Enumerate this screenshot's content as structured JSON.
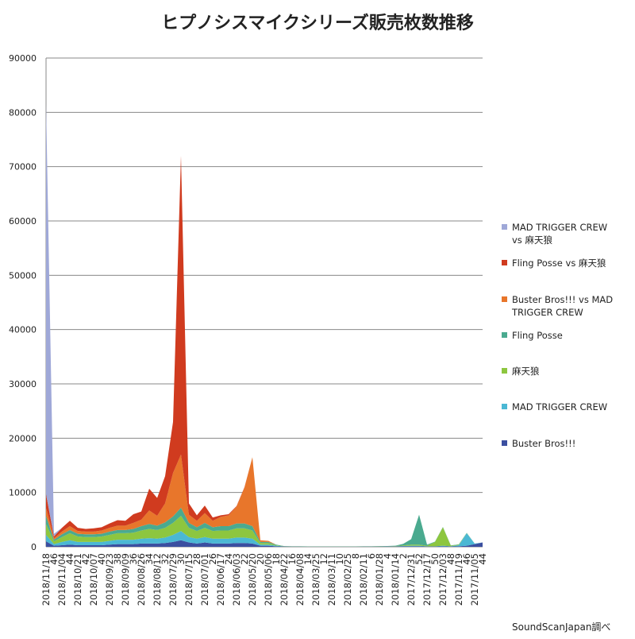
{
  "chart_data": {
    "type": "stacked_area",
    "title": "ヒプノシスマイクシリーズ販売枚数推移",
    "source": "SoundScanJapan調べ",
    "categories": [
      "2018/11/18",
      "46",
      "2018/11/04",
      "44",
      "2018/10/21",
      "42",
      "2018/10/07",
      "40",
      "2018/09/23",
      "38",
      "2018/09/09",
      "36",
      "2018/08/26",
      "34",
      "2018/08/12",
      "32",
      "2018/07/29",
      "30",
      "2018/07/15",
      "28",
      "2018/07/01",
      "26",
      "2018/06/17",
      "24",
      "2018/06/03",
      "22",
      "2018/05/20",
      "20",
      "2018/05/06",
      "18",
      "2018/04/22",
      "16",
      "2018/04/08",
      "14",
      "2018/03/25",
      "12",
      "2018/03/11",
      "10",
      "2018/02/25",
      "8",
      "2018/02/11",
      "6",
      "2018/01/28",
      "4",
      "2018/01/14",
      "2",
      "2017/12/31",
      "52",
      "2017/12/17",
      "50",
      "2017/12/03",
      "48",
      "2017/11/19",
      "46",
      "2017/11/05",
      "44"
    ],
    "series": [
      {
        "name": "MAD TRIGGER CREW vs 麻天狼",
        "color": "#9fa8d8",
        "values": [
          72000,
          500,
          0,
          0,
          0,
          0,
          0,
          0,
          0,
          0,
          0,
          0,
          0,
          0,
          0,
          0,
          0,
          0,
          0,
          0,
          0,
          0,
          0,
          0,
          0,
          0,
          0,
          0,
          0,
          0,
          0,
          0,
          0,
          0,
          0,
          0,
          0,
          0,
          0,
          0,
          0,
          0,
          0,
          0,
          0,
          0,
          0,
          0,
          0,
          0,
          0,
          0,
          0,
          0,
          0,
          0
        ]
      },
      {
        "name": "Fling Posse vs 麻天狼",
        "color": "#d03b1f",
        "values": [
          2500,
          300,
          700,
          1000,
          600,
          500,
          600,
          600,
          800,
          1000,
          900,
          1600,
          1500,
          4000,
          3300,
          5000,
          9400,
          55000,
          2100,
          1000,
          1400,
          600,
          300,
          200,
          100,
          100,
          0,
          0,
          0,
          0,
          0,
          0,
          0,
          0,
          0,
          0,
          0,
          0,
          0,
          0,
          0,
          0,
          0,
          0,
          0,
          0,
          0,
          0,
          0,
          0,
          0,
          0,
          0,
          0,
          0,
          0
        ]
      },
      {
        "name": "Buster Bros!!! vs MAD TRIGGER CREW",
        "color": "#e8762b",
        "values": [
          1500,
          300,
          500,
          700,
          500,
          500,
          500,
          600,
          700,
          800,
          800,
          1100,
          1200,
          2500,
          1800,
          3500,
          8000,
          9800,
          1500,
          1200,
          1800,
          1200,
          1700,
          2000,
          3100,
          6600,
          12700,
          300,
          200,
          0,
          0,
          0,
          0,
          0,
          0,
          0,
          0,
          0,
          0,
          0,
          0,
          0,
          0,
          0,
          0,
          0,
          0,
          0,
          0,
          0,
          0,
          0,
          0,
          0,
          0,
          0
        ]
      },
      {
        "name": "Fling Posse",
        "color": "#4aaa8f",
        "values": [
          1500,
          300,
          500,
          600,
          500,
          500,
          500,
          500,
          600,
          600,
          600,
          700,
          800,
          900,
          800,
          1000,
          1200,
          1500,
          900,
          700,
          900,
          700,
          800,
          800,
          900,
          900,
          800,
          200,
          200,
          100,
          20,
          20,
          20,
          20,
          20,
          20,
          20,
          20,
          20,
          20,
          20,
          20,
          30,
          40,
          50,
          300,
          1000,
          5500,
          200,
          50,
          50,
          50,
          50,
          30,
          0,
          0
        ]
      },
      {
        "name": "麻天狼",
        "color": "#8dc63f",
        "values": [
          2000,
          500,
          900,
          1300,
          1000,
          900,
          900,
          1000,
          1100,
          1200,
          1200,
          1300,
          1500,
          1700,
          1600,
          1800,
          2200,
          2800,
          1700,
          1400,
          1700,
          1400,
          1500,
          1500,
          1700,
          1700,
          1500,
          300,
          300,
          100,
          30,
          20,
          20,
          20,
          20,
          20,
          20,
          20,
          20,
          20,
          20,
          20,
          30,
          30,
          50,
          100,
          200,
          200,
          100,
          800,
          3400,
          100,
          100,
          50,
          0,
          0
        ]
      },
      {
        "name": "MAD TRIGGER CREW",
        "color": "#4bb8d4",
        "values": [
          1200,
          300,
          600,
          800,
          600,
          600,
          600,
          600,
          700,
          800,
          800,
          800,
          900,
          1000,
          900,
          1000,
          1300,
          1700,
          1000,
          900,
          1000,
          900,
          900,
          900,
          1000,
          1000,
          900,
          200,
          200,
          100,
          30,
          20,
          20,
          20,
          20,
          20,
          20,
          20,
          20,
          20,
          20,
          20,
          30,
          30,
          50,
          50,
          100,
          100,
          50,
          50,
          100,
          50,
          200,
          2300,
          100,
          0
        ]
      },
      {
        "name": "Buster Bros!!!",
        "color": "#3b4fa0",
        "values": [
          1000,
          200,
          300,
          400,
          300,
          300,
          300,
          300,
          400,
          500,
          500,
          500,
          600,
          600,
          600,
          700,
          900,
          1200,
          800,
          600,
          800,
          600,
          600,
          600,
          700,
          700,
          600,
          200,
          200,
          100,
          50,
          30,
          30,
          20,
          20,
          20,
          20,
          20,
          20,
          20,
          30,
          30,
          30,
          50,
          50,
          100,
          100,
          100,
          50,
          50,
          100,
          50,
          100,
          200,
          500,
          800
        ]
      }
    ],
    "ylim": [
      0,
      90000
    ],
    "yticks": [
      0,
      10000,
      20000,
      30000,
      40000,
      50000,
      60000,
      70000,
      80000,
      90000
    ],
    "grid": true,
    "legend": "right"
  }
}
